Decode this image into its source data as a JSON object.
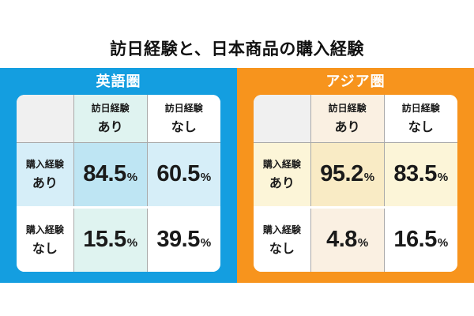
{
  "title": "訪日経験と、日本商品の購入経験",
  "panels": [
    {
      "label": "英語圏",
      "unit": "%",
      "colors": {
        "accent": "#149EE0",
        "empty": "#F0F0F0",
        "col": "#DFF3F0",
        "row": "#D6EEF8",
        "cross": "#BEE5F3"
      },
      "col_headers": [
        {
          "top": "訪日経験",
          "bottom": "あり"
        },
        {
          "top": "訪日経験",
          "bottom": "なし"
        }
      ],
      "rows": [
        {
          "top": "購入経験",
          "bottom": "あり",
          "values": [
            "84.5",
            "60.5"
          ]
        },
        {
          "top": "購入経験",
          "bottom": "なし",
          "values": [
            "15.5",
            "39.5"
          ]
        }
      ]
    },
    {
      "label": "アジア圏",
      "unit": "%",
      "colors": {
        "accent": "#F7941D",
        "empty": "#F0F0F0",
        "col": "#FAF0E2",
        "row": "#FCF5D8",
        "cross": "#F9EBC5"
      },
      "col_headers": [
        {
          "top": "訪日経験",
          "bottom": "あり"
        },
        {
          "top": "訪日経験",
          "bottom": "なし"
        }
      ],
      "rows": [
        {
          "top": "購入経験",
          "bottom": "あり",
          "values": [
            "95.2",
            "83.5"
          ]
        },
        {
          "top": "購入経験",
          "bottom": "なし",
          "values": [
            "4.8",
            "16.5"
          ]
        }
      ]
    }
  ],
  "chart_data": {
    "type": "table",
    "title": "訪日経験と、日本商品の購入経験",
    "unit": "%",
    "tables": [
      {
        "group": "英語圏",
        "columns": [
          "訪日経験あり",
          "訪日経験なし"
        ],
        "rows": [
          {
            "label": "購入経験あり",
            "values": [
              84.5,
              60.5
            ]
          },
          {
            "label": "購入経験なし",
            "values": [
              15.5,
              39.5
            ]
          }
        ]
      },
      {
        "group": "アジア圏",
        "columns": [
          "訪日経験あり",
          "訪日経験なし"
        ],
        "rows": [
          {
            "label": "購入経験あり",
            "values": [
              95.2,
              83.5
            ]
          },
          {
            "label": "購入経験なし",
            "values": [
              4.8,
              16.5
            ]
          }
        ]
      }
    ]
  }
}
